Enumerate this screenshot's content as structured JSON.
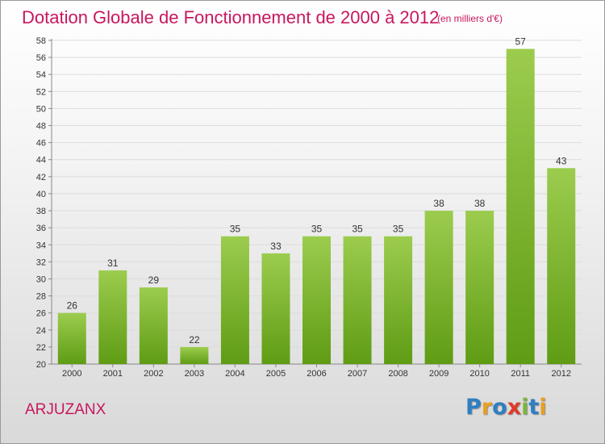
{
  "header": {
    "title": "Dotation Globale de Fonctionnement de 2000 à 2012",
    "subtitle": "(en milliers d'€)"
  },
  "footer": {
    "commune": "ARJUZANX",
    "logo": [
      "P",
      "r",
      "o",
      "x",
      "i",
      "t",
      "i"
    ]
  },
  "colors": {
    "title": "#c8175f",
    "bar_light": "#9ccc4e",
    "bar_dark": "#5f9c14",
    "logo": [
      "#2f7fc1",
      "#e8a020",
      "#2f7fc1",
      "#e03a2a",
      "#7bb63a",
      "#2f7fc1",
      "#e8a020"
    ]
  },
  "chart_data": {
    "type": "bar",
    "categories": [
      "2000",
      "2001",
      "2002",
      "2003",
      "2004",
      "2005",
      "2006",
      "2007",
      "2008",
      "2009",
      "2010",
      "2011",
      "2012"
    ],
    "values": [
      26,
      31,
      29,
      22,
      35,
      33,
      35,
      35,
      35,
      38,
      38,
      57,
      43
    ],
    "ylim": [
      20,
      58
    ],
    "yticks": [
      20,
      22,
      24,
      26,
      28,
      30,
      32,
      34,
      36,
      38,
      40,
      42,
      44,
      46,
      48,
      50,
      52,
      54,
      56,
      58
    ],
    "grid": true,
    "data_labels": true
  }
}
